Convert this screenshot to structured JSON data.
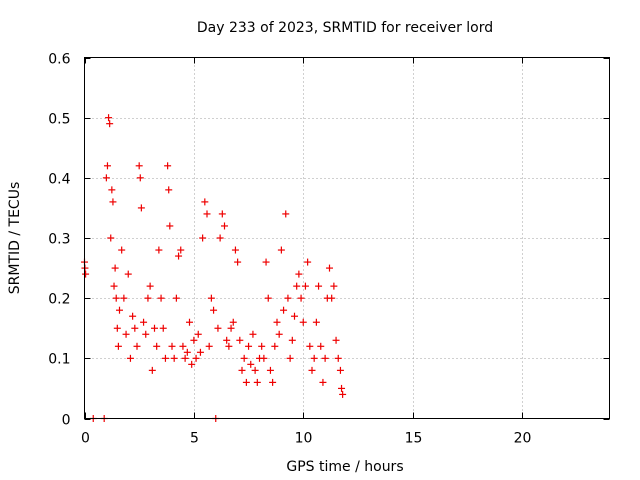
{
  "chart_data": {
    "type": "scatter",
    "title": "Day 233 of 2023, SRMTID for receiver lord",
    "xlabel": "GPS time / hours",
    "ylabel": "SRMTID / TECUs",
    "xlim": [
      0,
      24
    ],
    "ylim": [
      0,
      0.6
    ],
    "xticks": [
      0,
      5,
      10,
      15,
      20
    ],
    "yticks": [
      0,
      0.1,
      0.2,
      0.3,
      0.4,
      0.5,
      0.6
    ],
    "xtick_labels": [
      "0",
      "5",
      "10",
      "15",
      "20"
    ],
    "ytick_labels": [
      "0",
      "0.1",
      "0.2",
      "0.3",
      "0.4",
      "0.5",
      "0.6"
    ],
    "grid": true,
    "marker": "+",
    "series": [
      {
        "name": "SRMTID",
        "color": "#ee0000",
        "x": [
          0.0,
          0.02,
          0.05,
          0.4,
          0.9,
          1.0,
          1.05,
          1.1,
          1.15,
          1.2,
          1.25,
          1.3,
          1.35,
          1.4,
          1.45,
          1.5,
          1.55,
          1.6,
          1.7,
          1.8,
          1.9,
          2.0,
          2.1,
          2.2,
          2.3,
          2.4,
          2.5,
          2.55,
          2.6,
          2.7,
          2.8,
          2.9,
          3.0,
          3.1,
          3.2,
          3.3,
          3.4,
          3.5,
          3.6,
          3.7,
          3.8,
          3.85,
          3.9,
          4.0,
          4.1,
          4.2,
          4.3,
          4.4,
          4.5,
          4.6,
          4.7,
          4.8,
          4.9,
          5.0,
          5.1,
          5.2,
          5.3,
          5.4,
          5.5,
          5.6,
          5.7,
          5.8,
          5.9,
          6.0,
          6.1,
          6.2,
          6.3,
          6.4,
          6.5,
          6.6,
          6.7,
          6.8,
          6.9,
          7.0,
          7.1,
          7.2,
          7.3,
          7.4,
          7.5,
          7.6,
          7.7,
          7.8,
          7.9,
          8.0,
          8.1,
          8.2,
          8.3,
          8.4,
          8.5,
          8.6,
          8.7,
          8.8,
          8.9,
          9.0,
          9.1,
          9.2,
          9.3,
          9.4,
          9.5,
          9.6,
          9.7,
          9.8,
          9.9,
          10.0,
          10.1,
          10.2,
          10.3,
          10.4,
          10.5,
          10.6,
          10.7,
          10.8,
          10.9,
          11.0,
          11.1,
          11.2,
          11.3,
          11.4,
          11.5,
          11.6,
          11.7,
          11.75,
          11.8
        ],
        "y": [
          0.26,
          0.25,
          0.24,
          0.0,
          0.0,
          0.4,
          0.42,
          0.5,
          0.49,
          0.3,
          0.38,
          0.36,
          0.22,
          0.25,
          0.2,
          0.15,
          0.12,
          0.18,
          0.28,
          0.2,
          0.14,
          0.24,
          0.1,
          0.17,
          0.15,
          0.12,
          0.42,
          0.4,
          0.35,
          0.16,
          0.14,
          0.2,
          0.22,
          0.08,
          0.15,
          0.12,
          0.28,
          0.2,
          0.15,
          0.1,
          0.42,
          0.38,
          0.32,
          0.12,
          0.1,
          0.2,
          0.27,
          0.28,
          0.12,
          0.1,
          0.11,
          0.16,
          0.09,
          0.13,
          0.1,
          0.14,
          0.11,
          0.3,
          0.36,
          0.34,
          0.12,
          0.2,
          0.18,
          0.0,
          0.15,
          0.3,
          0.34,
          0.32,
          0.13,
          0.12,
          0.15,
          0.16,
          0.28,
          0.26,
          0.13,
          0.08,
          0.1,
          0.06,
          0.12,
          0.09,
          0.14,
          0.08,
          0.06,
          0.1,
          0.12,
          0.1,
          0.26,
          0.2,
          0.08,
          0.06,
          0.12,
          0.16,
          0.14,
          0.28,
          0.18,
          0.34,
          0.2,
          0.1,
          0.13,
          0.17,
          0.22,
          0.24,
          0.2,
          0.16,
          0.22,
          0.26,
          0.12,
          0.08,
          0.1,
          0.16,
          0.22,
          0.12,
          0.06,
          0.1,
          0.2,
          0.25,
          0.2,
          0.22,
          0.13,
          0.1,
          0.08,
          0.05,
          0.04
        ]
      }
    ]
  }
}
